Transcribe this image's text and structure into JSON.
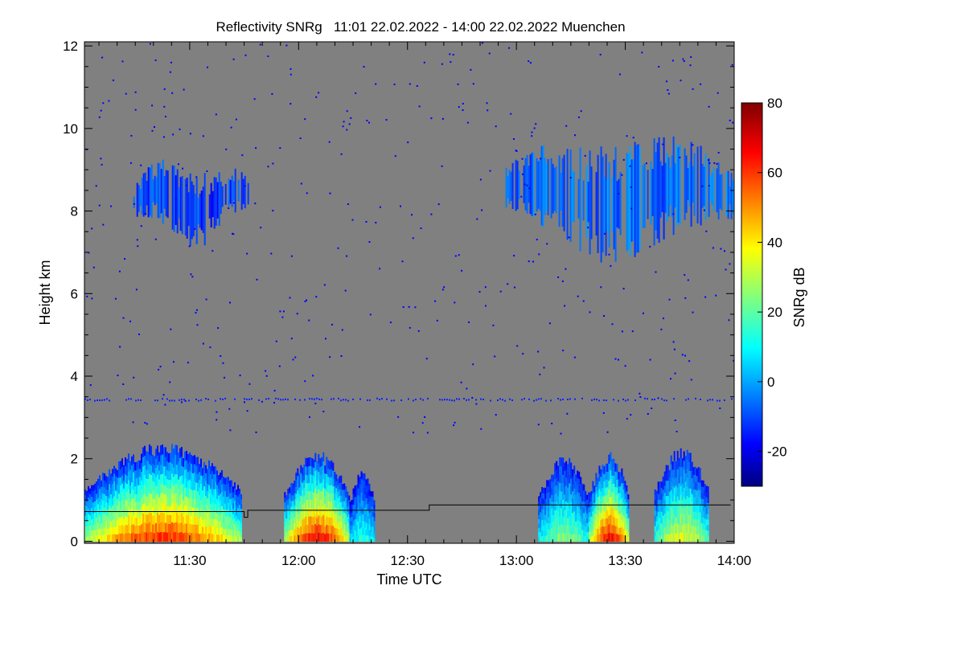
{
  "chart_data": {
    "type": "heatmap",
    "title": "Reflectivity SNRg   11:01 22.02.2022 - 14:00 22.02.2022 Muenchen",
    "xlabel": "Time UTC",
    "ylabel": "Height km",
    "x_ticks": [
      "11:30",
      "12:00",
      "12:30",
      "13:00",
      "13:30",
      "14:00"
    ],
    "x_tick_minutes": [
      690,
      720,
      750,
      780,
      810,
      840
    ],
    "xlim_minutes": [
      661,
      840
    ],
    "y_ticks": [
      0,
      2,
      4,
      6,
      8,
      10,
      12
    ],
    "ylim": [
      -0.05,
      12.1
    ],
    "colorbar": {
      "label": "SNRg dB",
      "ticks": [
        -20,
        0,
        20,
        40,
        60,
        80
      ],
      "range": [
        -30,
        80
      ]
    },
    "background_color": "#808080",
    "echo_regions": [
      {
        "name": "low-level precipitation 1",
        "t_start": 661,
        "t_end": 704,
        "h_top": 2.4,
        "peak_snr": 60
      },
      {
        "name": "low-level precipitation 2",
        "t_start": 716,
        "t_end": 734,
        "h_top": 2.2,
        "peak_snr": 65
      },
      {
        "name": "low-level precipitation 3",
        "t_start": 734,
        "t_end": 741,
        "h_top": 1.8,
        "peak_snr": 15
      },
      {
        "name": "low-level precipitation 4",
        "t_start": 786,
        "t_end": 800,
        "h_top": 2.1,
        "peak_snr": 25
      },
      {
        "name": "low-level precipitation 5",
        "t_start": 800,
        "t_end": 811,
        "h_top": 2.2,
        "peak_snr": 65
      },
      {
        "name": "low-level precipitation 6",
        "t_start": 818,
        "t_end": 833,
        "h_top": 2.3,
        "peak_snr": 35
      },
      {
        "name": "upper cloud layer west",
        "t_start": 674,
        "t_end": 706,
        "h_top": 9.3,
        "h_bottom": 7.2,
        "peak_snr": -5
      },
      {
        "name": "upper cloud layer east",
        "t_start": 777,
        "t_end": 840,
        "h_top": 10.0,
        "h_bottom": 6.8,
        "peak_snr": 0
      }
    ],
    "overlay_line": {
      "description": "black step line",
      "points": [
        [
          661,
          0.72
        ],
        [
          705,
          0.72
        ],
        [
          705,
          0.58
        ],
        [
          706,
          0.58
        ],
        [
          706,
          0.75
        ],
        [
          756,
          0.75
        ],
        [
          756,
          0.88
        ],
        [
          839,
          0.88
        ]
      ]
    }
  }
}
